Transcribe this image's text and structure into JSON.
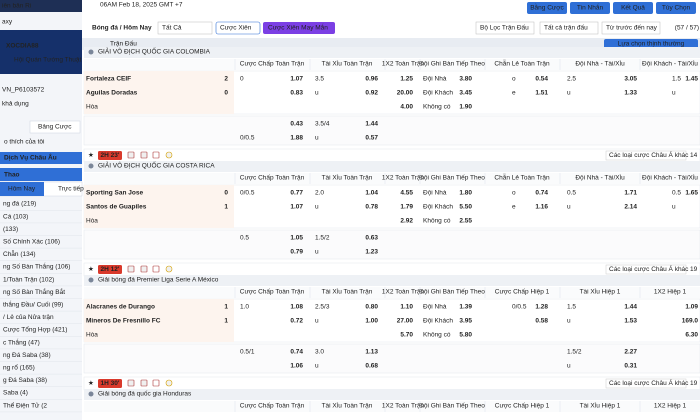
{
  "topbar": {
    "datetime": "06AM Feb 18, 2025 GMT +7"
  },
  "sidebar": {
    "version": "iên bản Ri",
    "logo": "XOCDIA88",
    "logo_tag": "Hội Quán Tướng Thuật",
    "site": "axy",
    "account": "VN_P6103572",
    "balance_label": "khả dụng",
    "bet_tab": "Bảng Cược",
    "favorites": "o thích của tôi",
    "euro": "Dịch Vụ Châu Âu",
    "sports": "Thao",
    "today": "Hôm Nay",
    "live": "Trực tiếp",
    "menu": [
      "ng đá (219)",
      "Cá (103)",
      "(133)",
      "Số Chính Xác (106)",
      "Chẵn (134)",
      "ng Số Bàn Thắng (106)",
      "1/Toàn Trận (102)",
      "ng Số Bàn Thắng Bắt",
      "thắng Đầu/ Cuối (99)",
      "/ Lẻ của Nửa trận",
      "Cược Tổng Hợp (421)",
      "c Thắng (47)",
      "ng Đá Saba (38)",
      "ng rổ (165)",
      "g Đá Saba (38)",
      "Saba (4)",
      "Thể Điện Tử (2"
    ]
  },
  "toolbar": {
    "breadcrumb": "Bóng đá / Hôm Nay",
    "filter": "Tất Cả",
    "parlay": "Cược Xiên",
    "lucky_parlay": "Cược Xiên May Mắn",
    "match_filter": "Bộ Lọc Trận Đấu",
    "buttons": [
      "Bằng Cược",
      "Tin Nhắn",
      "Kết Quả",
      "Tùy Chọn"
    ],
    "all_matches": "Tất cả trận đấu",
    "period": "Từ trước đến nay",
    "count": "(57 / 57)",
    "matches_label": "Trận Đấu",
    "sort": "Lựa chọn thịnh thường"
  },
  "sections": [
    {
      "league": "GIẢI VÔ ĐỊCH QUỐC GIA COLOMBIA",
      "columns": [
        "Cược Chấp Toàn Trận",
        "Tài Xỉu Toàn Trận",
        "1X2 Toàn Trận",
        "Đội Ghi Bàn Tiếp Theo",
        "Chẵn Lẻ Toàn Trận",
        "Đội Nhà - Tài/Xỉu",
        "Đội Khách - Tài/Xỉu"
      ],
      "home": "Fortaleza CEIF",
      "home_score": "2",
      "away": "Aguilas Doradas",
      "away_score": "0",
      "draw": "Hòa",
      "time": "2H 23'",
      "more": "Các loại cược Châu Á khác",
      "more_count": "14",
      "rows": [
        [
          "0",
          "1.07",
          "3.5",
          "0.96",
          "1.25",
          "Đội Nhà",
          "3.80",
          "o",
          "0.54",
          "2.5",
          "3.05",
          "1.5",
          "1.45"
        ],
        [
          null,
          "0.83",
          "u",
          "0.92",
          "20.00",
          "Đội Khách",
          "3.45",
          "e",
          "1.51",
          "u",
          "1.33",
          "u",
          null
        ],
        [
          null,
          null,
          null,
          null,
          "4.00",
          "Không có",
          "1.90",
          null,
          null,
          null,
          null,
          null,
          null
        ],
        [
          null,
          "0.43",
          "3.5/4",
          "1.44",
          null,
          null,
          null,
          null,
          null,
          null,
          null,
          null,
          null
        ],
        [
          "0/0.5",
          "1.88",
          "u",
          "0.57",
          null,
          null,
          null,
          null,
          null,
          null,
          null,
          null,
          null
        ]
      ]
    },
    {
      "league": "GIẢI VÔ ĐỊCH QUỐC GIA COSTA RICA",
      "columns": [
        "Cược Chấp Toàn Trận",
        "Tài Xỉu Toàn Trận",
        "1X2 Toàn Trận",
        "Đội Ghi Bàn Tiếp Theo",
        "Chẵn Lẻ Toàn Trận",
        "Đội Nhà - Tài/Xỉu",
        "Đội Khách - Tài/Xỉu"
      ],
      "home": "Sporting San Jose",
      "home_score": "0",
      "away": "Santos de Guapiles",
      "away_score": "1",
      "draw": "Hòa",
      "time": "2H 12'",
      "more": "Các loại cược Châu Á khác",
      "more_count": "19",
      "rows": [
        [
          "0/0.5",
          "0.77",
          "2.0",
          "1.04",
          "4.55",
          "Đội Nhà",
          "1.80",
          "o",
          "0.74",
          "0.5",
          "1.71",
          "0.5",
          "1.65"
        ],
        [
          null,
          "1.07",
          "u",
          "0.78",
          "1.79",
          "Đội Khách",
          "5.50",
          "e",
          "1.16",
          "u",
          "2.14",
          "u",
          null
        ],
        [
          null,
          null,
          null,
          null,
          "2.92",
          "Không có",
          "2.55",
          null,
          null,
          null,
          null,
          null,
          null
        ],
        [
          "0.5",
          "1.05",
          "1.5/2",
          "0.63",
          null,
          null,
          null,
          null,
          null,
          null,
          null,
          null,
          null
        ],
        [
          null,
          "0.79",
          "u",
          "1.23",
          null,
          null,
          null,
          null,
          null,
          null,
          null,
          null,
          null
        ]
      ]
    },
    {
      "league": "Giải bóng đá Premier Liga Serie A México",
      "columns": [
        "Cược Chấp Toàn Trận",
        "Tài Xỉu Toàn Trận",
        "1X2 Toàn Trận",
        "Đội Ghi Bàn Tiếp Theo",
        "Cược Chấp Hiệp 1",
        "Tài Xỉu Hiệp 1",
        "1X2 Hiệp 1"
      ],
      "home": "Alacranes de Durango",
      "home_score": "1",
      "away": "Mineros De Fresnillo FC",
      "away_score": "1",
      "draw": "Hòa",
      "time": "1H 30'",
      "more": "Các loại cược Châu Á khác",
      "more_count": "19",
      "rows": [
        [
          "1.0",
          "1.08",
          "2.5/3",
          "0.80",
          "1.10",
          "Đội Nhà",
          "1.39",
          "0/0.5",
          "1.28",
          "1.5",
          "1.44",
          null,
          "1.09"
        ],
        [
          null,
          "0.72",
          "u",
          "1.00",
          "27.00",
          "Đội Khách",
          "3.95",
          null,
          "0.58",
          "u",
          "1.53",
          null,
          "169.0"
        ],
        [
          null,
          null,
          null,
          null,
          "5.70",
          "Không có",
          "5.80",
          null,
          null,
          null,
          null,
          null,
          "6.30"
        ],
        [
          "0.5/1",
          "0.74",
          "3.0",
          "1.13",
          null,
          null,
          null,
          null,
          null,
          "1.5/2",
          "2.27",
          null,
          null
        ],
        [
          null,
          "1.06",
          "u",
          "0.68",
          null,
          null,
          null,
          null,
          null,
          "u",
          "0.31",
          null,
          null
        ]
      ]
    },
    {
      "league": "Giải bóng đá quốc gia Honduras",
      "columns": [
        "Cược Chấp Toàn Trận",
        "Tài Xỉu Toàn Trận",
        "1X2 Toàn Trận",
        "Đội Ghi Bàn Tiếp Theo",
        "Cược Chấp Hiệp 1",
        "Tài Xỉu Hiệp 1",
        "1X2 Hiệp 1"
      ]
    }
  ]
}
